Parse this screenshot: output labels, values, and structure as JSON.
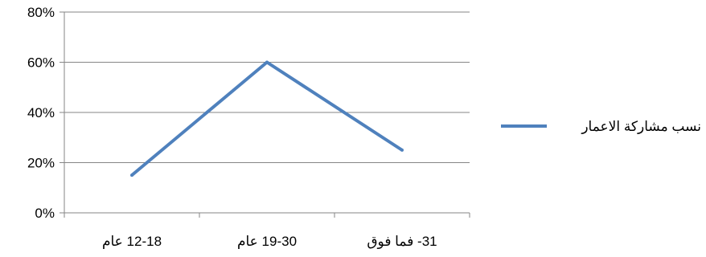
{
  "chart_data": {
    "type": "line",
    "categories": [
      "12-18 عام",
      "19-30 عام",
      "31- فما فوق"
    ],
    "series": [
      {
        "name": "نسب مشاركة الاعمار",
        "values": [
          0.15,
          0.6,
          0.25
        ],
        "color": "#4f81bd"
      }
    ],
    "ylim": [
      0,
      0.8
    ],
    "yticks": [
      0,
      0.2,
      0.4,
      0.6,
      0.8
    ],
    "ytick_labels": [
      "0%",
      "20%",
      "40%",
      "60%",
      "80%"
    ],
    "grid": true,
    "legend_position": "right"
  }
}
